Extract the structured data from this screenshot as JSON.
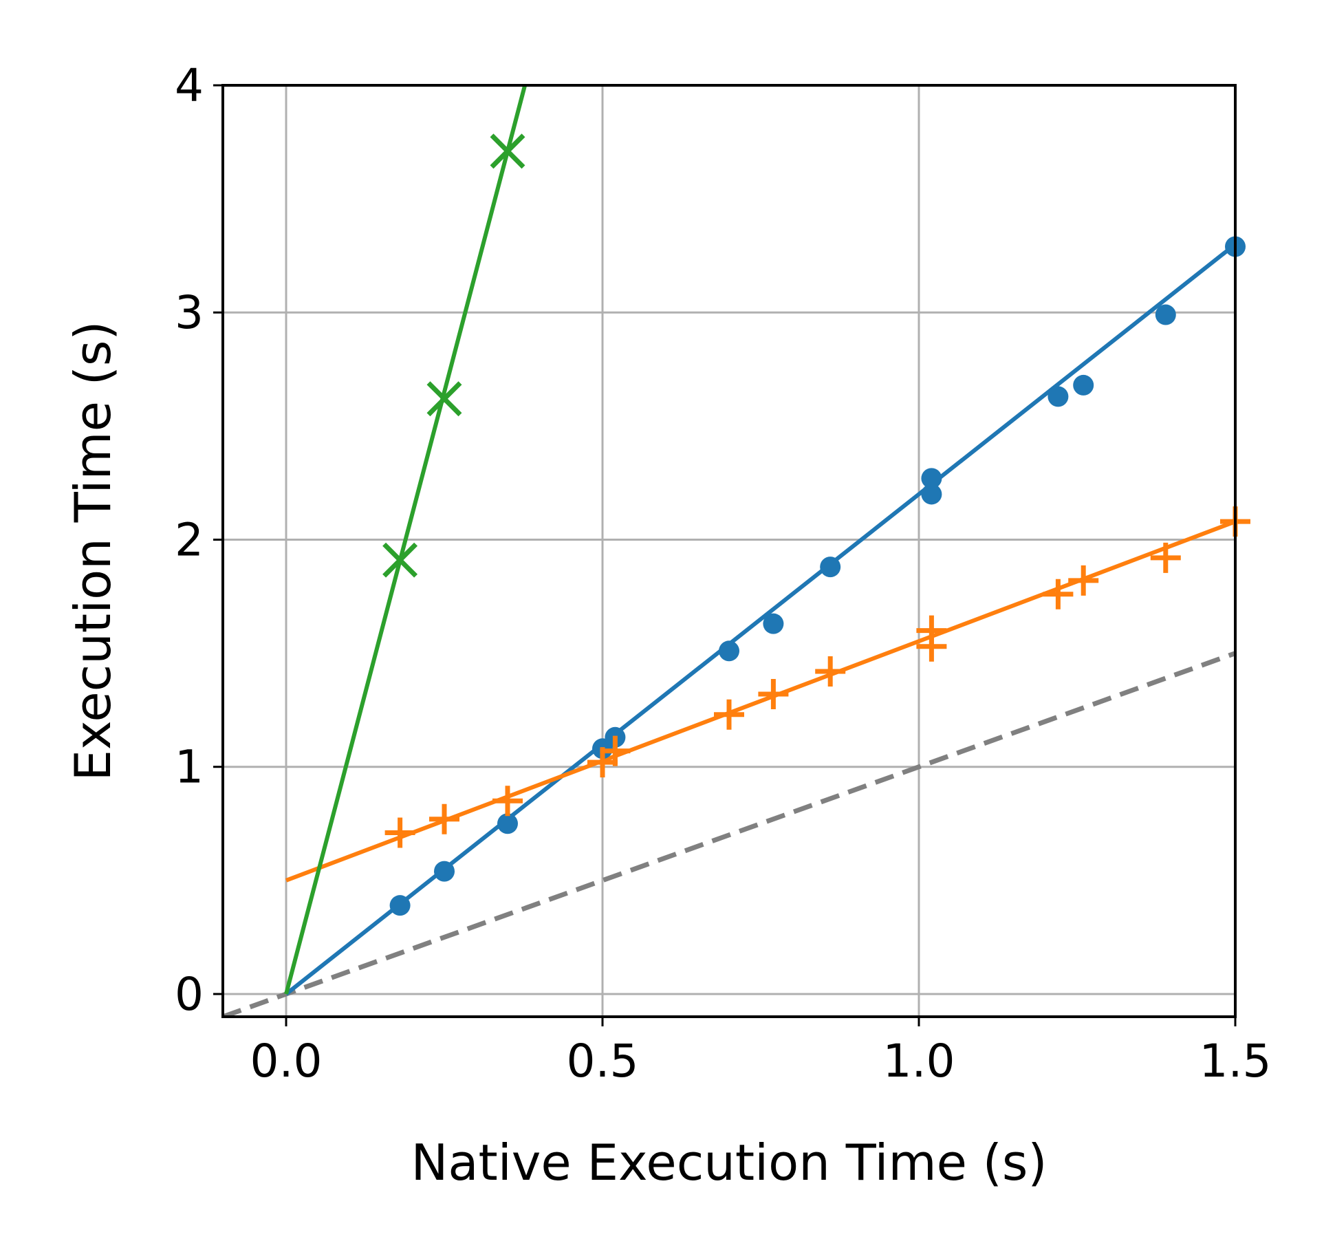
{
  "chart_data": {
    "type": "scatter",
    "title": "",
    "xlabel": "Native Execution Time (s)",
    "ylabel": "Execution Time (s)",
    "xlim": [
      -0.1,
      1.5
    ],
    "ylim": [
      -0.1,
      4.0
    ],
    "xticks": [
      0.0,
      0.5,
      1.0,
      1.5
    ],
    "xtick_labels": [
      "0.0",
      "0.5",
      "1.0",
      "1.5"
    ],
    "yticks": [
      0,
      1,
      2,
      3,
      4
    ],
    "ytick_labels": [
      "0",
      "1",
      "2",
      "3",
      "4"
    ],
    "grid": true,
    "legend": "none",
    "series": [
      {
        "color": "#1f77b4",
        "marker": "circle",
        "points": [
          {
            "x": 0.18,
            "y": 0.39
          },
          {
            "x": 0.25,
            "y": 0.54
          },
          {
            "x": 0.35,
            "y": 0.75
          },
          {
            "x": 0.5,
            "y": 1.08
          },
          {
            "x": 0.52,
            "y": 1.13
          },
          {
            "x": 0.7,
            "y": 1.51
          },
          {
            "x": 0.77,
            "y": 1.63
          },
          {
            "x": 0.86,
            "y": 1.88
          },
          {
            "x": 1.02,
            "y": 2.2
          },
          {
            "x": 1.02,
            "y": 2.27
          },
          {
            "x": 1.22,
            "y": 2.63
          },
          {
            "x": 1.26,
            "y": 2.68
          },
          {
            "x": 1.39,
            "y": 2.99
          },
          {
            "x": 1.5,
            "y": 3.29
          }
        ],
        "fit": {
          "slope": 2.2,
          "intercept": 0.0
        }
      },
      {
        "color": "#ff7f0e",
        "marker": "plus",
        "points": [
          {
            "x": 0.18,
            "y": 0.71
          },
          {
            "x": 0.25,
            "y": 0.77
          },
          {
            "x": 0.35,
            "y": 0.85
          },
          {
            "x": 0.5,
            "y": 1.02
          },
          {
            "x": 0.52,
            "y": 1.07
          },
          {
            "x": 0.7,
            "y": 1.23
          },
          {
            "x": 0.77,
            "y": 1.32
          },
          {
            "x": 0.86,
            "y": 1.42
          },
          {
            "x": 1.02,
            "y": 1.53
          },
          {
            "x": 1.02,
            "y": 1.6
          },
          {
            "x": 1.22,
            "y": 1.76
          },
          {
            "x": 1.26,
            "y": 1.82
          },
          {
            "x": 1.39,
            "y": 1.92
          },
          {
            "x": 1.5,
            "y": 2.08
          }
        ],
        "fit": {
          "slope": 1.053,
          "intercept": 0.5
        }
      },
      {
        "color": "#2ca02c",
        "marker": "x",
        "points": [
          {
            "x": 0.18,
            "y": 1.91
          },
          {
            "x": 0.25,
            "y": 2.62
          },
          {
            "x": 0.35,
            "y": 3.71
          }
        ],
        "fit": {
          "slope": 10.6,
          "intercept": 0.0
        }
      }
    ],
    "reference_line": {
      "slope": 1.0,
      "intercept": 0.0,
      "color": "#808080",
      "style": "dashed"
    }
  }
}
